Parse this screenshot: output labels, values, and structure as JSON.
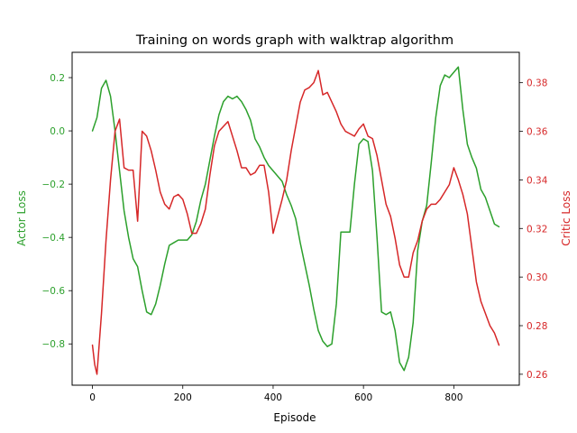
{
  "chart_data": {
    "type": "line",
    "title": "Training on words graph with walktrap algorithm",
    "xlabel": "Episode",
    "xlim": [
      -45,
      945
    ],
    "xticks": [
      0,
      200,
      400,
      600,
      800
    ],
    "grid": false,
    "legend": "none",
    "axes": {
      "left": {
        "ylabel": "Actor Loss",
        "color": "#2ca02c",
        "ylim": [
          -0.955,
          0.295
        ],
        "yticks": [
          0.2,
          0.0,
          -0.2,
          -0.4,
          -0.6,
          -0.8
        ],
        "ytick_labels": [
          "0.2",
          "0.0",
          "−0.2",
          "−0.4",
          "−0.6",
          "−0.8"
        ]
      },
      "right": {
        "ylabel": "Critic Loss",
        "color": "#d62728",
        "ylim": [
          0.2555,
          0.3925
        ],
        "yticks": [
          0.26,
          0.28,
          0.3,
          0.32,
          0.34,
          0.36,
          0.38
        ],
        "ytick_labels": [
          "0.26",
          "0.28",
          "0.30",
          "0.32",
          "0.34",
          "0.36",
          "0.38"
        ]
      }
    },
    "series": [
      {
        "axis": "left",
        "color": "#2ca02c",
        "x": [
          0,
          10,
          20,
          30,
          40,
          50,
          60,
          70,
          80,
          90,
          100,
          110,
          120,
          130,
          140,
          150,
          160,
          170,
          180,
          190,
          200,
          210,
          220,
          230,
          240,
          250,
          260,
          270,
          280,
          290,
          300,
          310,
          320,
          330,
          340,
          350,
          360,
          370,
          380,
          390,
          400,
          410,
          420,
          430,
          440,
          450,
          460,
          470,
          480,
          490,
          500,
          510,
          520,
          530,
          540,
          550,
          560,
          570,
          580,
          590,
          600,
          610,
          620,
          630,
          640,
          650,
          660,
          670,
          680,
          690,
          700,
          710,
          720,
          730,
          740,
          750,
          760,
          770,
          780,
          790,
          800,
          810,
          820,
          830,
          840,
          850,
          860,
          870,
          880,
          890,
          900
        ],
        "y": [
          0.0,
          0.05,
          0.16,
          0.19,
          0.13,
          0.0,
          -0.15,
          -0.3,
          -0.4,
          -0.48,
          -0.51,
          -0.6,
          -0.68,
          -0.69,
          -0.65,
          -0.58,
          -0.5,
          -0.43,
          -0.42,
          -0.41,
          -0.41,
          -0.41,
          -0.39,
          -0.34,
          -0.26,
          -0.2,
          -0.11,
          -0.02,
          0.06,
          0.11,
          0.13,
          0.12,
          0.13,
          0.11,
          0.08,
          0.04,
          -0.03,
          -0.06,
          -0.1,
          -0.13,
          -0.15,
          -0.17,
          -0.19,
          -0.24,
          -0.28,
          -0.33,
          -0.42,
          -0.5,
          -0.58,
          -0.67,
          -0.75,
          -0.79,
          -0.81,
          -0.8,
          -0.65,
          -0.38,
          -0.38,
          -0.38,
          -0.2,
          -0.05,
          -0.03,
          -0.04,
          -0.15,
          -0.4,
          -0.68,
          -0.69,
          -0.68,
          -0.75,
          -0.87,
          -0.9,
          -0.85,
          -0.72,
          -0.45,
          -0.34,
          -0.28,
          -0.12,
          0.05,
          0.17,
          0.21,
          0.2,
          0.22,
          0.24,
          0.08,
          -0.05,
          -0.1,
          -0.14,
          -0.22,
          -0.25,
          -0.3,
          -0.35,
          -0.36
        ]
      },
      {
        "axis": "right",
        "color": "#d62728",
        "x": [
          0,
          5,
          10,
          20,
          30,
          40,
          50,
          60,
          70,
          80,
          90,
          100,
          110,
          120,
          130,
          140,
          150,
          160,
          170,
          180,
          190,
          200,
          210,
          220,
          230,
          240,
          250,
          260,
          270,
          280,
          290,
          300,
          310,
          320,
          330,
          340,
          350,
          360,
          370,
          380,
          390,
          400,
          410,
          420,
          430,
          440,
          450,
          460,
          470,
          480,
          490,
          500,
          510,
          520,
          530,
          540,
          550,
          560,
          570,
          580,
          590,
          600,
          610,
          620,
          630,
          640,
          650,
          660,
          670,
          680,
          690,
          700,
          710,
          720,
          730,
          740,
          750,
          760,
          770,
          780,
          790,
          800,
          810,
          820,
          830,
          840,
          850,
          860,
          870,
          880,
          890,
          900
        ],
        "y": [
          0.272,
          0.264,
          0.26,
          0.285,
          0.315,
          0.34,
          0.36,
          0.365,
          0.345,
          0.344,
          0.344,
          0.323,
          0.36,
          0.358,
          0.352,
          0.344,
          0.335,
          0.33,
          0.328,
          0.333,
          0.334,
          0.332,
          0.326,
          0.318,
          0.318,
          0.322,
          0.328,
          0.342,
          0.354,
          0.36,
          0.362,
          0.364,
          0.358,
          0.352,
          0.345,
          0.345,
          0.342,
          0.343,
          0.346,
          0.346,
          0.335,
          0.318,
          0.325,
          0.332,
          0.34,
          0.352,
          0.362,
          0.372,
          0.377,
          0.378,
          0.38,
          0.385,
          0.375,
          0.376,
          0.372,
          0.368,
          0.363,
          0.36,
          0.359,
          0.358,
          0.361,
          0.363,
          0.358,
          0.357,
          0.35,
          0.34,
          0.33,
          0.325,
          0.316,
          0.305,
          0.3,
          0.3,
          0.31,
          0.315,
          0.323,
          0.328,
          0.33,
          0.33,
          0.332,
          0.335,
          0.338,
          0.345,
          0.34,
          0.334,
          0.326,
          0.312,
          0.298,
          0.29,
          0.285,
          0.28,
          0.277,
          0.272
        ]
      }
    ]
  }
}
